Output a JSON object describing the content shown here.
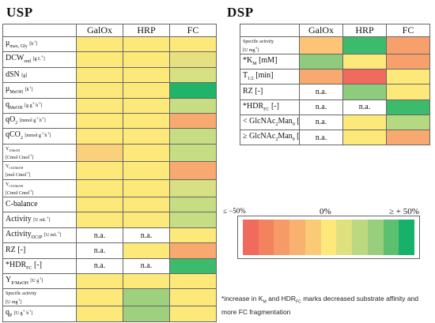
{
  "usp": {
    "title": "USP",
    "columns": [
      "GalOx",
      "HRP",
      "FC"
    ],
    "rows": [
      {
        "html": "μ<sub>max, Gly</sub> <span class=\"lg-s\">[h<sup>-1</sup>]</span>",
        "cells": [
          "#fde97a",
          "#fde97a",
          "#fde97a"
        ]
      },
      {
        "html": "DCW<sub>end</sub> <span class=\"lg-s\">[g L<sup>-1</sup>]</span>",
        "cells": [
          "#fde97a",
          "#fde97a",
          "#e6e07e"
        ]
      },
      {
        "html": "dSN <span class=\"lg-s\">[g]</span>",
        "cells": [
          "#fde97a",
          "#fde97a",
          "#d7e083"
        ]
      },
      {
        "html": "μ<sub>MeOH</sub> <span class=\"lg-s\">[h<sup>-1</sup>]</span>",
        "cells": [
          "#fde97a",
          "#fde97a",
          "#1fb46a"
        ]
      },
      {
        "html": "q<sub>MeOH</sub> <span class=\"lg-s\">[g g<sup>-1</sup> h<sup>-1</sup>]</span>",
        "cells": [
          "#fde97a",
          "#fde97a",
          "#c7dd84"
        ]
      },
      {
        "html": "qO<sub>2</sub> <span class=\"lg-s\">[mmol g<sup>-1</sup> h<sup>-1</sup>]</span>",
        "cells": [
          "#fde97a",
          "#fde97a",
          "#f8a96f"
        ]
      },
      {
        "html": "qCO<sub>2</sub> <span class=\"lg-s\">[mmol g<sup>-1</sup> h<sup>-1</sup>]</span>",
        "cells": [
          "#fde97a",
          "#fde97a",
          "#c7dd84"
        ]
      },
      {
        "html": "<span class=\"lg-s\">Y<sub>X/MeOH</sub><br>[Cmol Cmol<sup>-1</sup>]</span>",
        "cells": [
          "#fbd07a",
          "#fde97a",
          "#c7dd84"
        ]
      },
      {
        "html": "<span class=\"lg-s\">Y<sub>CO2/MeOH</sub><br>[mol Cmol<sup>-1</sup>]</span>",
        "cells": [
          "#fde97a",
          "#fde97a",
          "#f8a96f"
        ]
      },
      {
        "html": "<span class=\"lg-s\">Y<sub>CO2/MeOH</sub><br>[Cmol Cmol<sup>-1</sup>]</span>",
        "cells": [
          "#fde97a",
          "#fde97a",
          "#d7e083"
        ]
      },
      {
        "html": "C-balance",
        "cells": [
          "#fde97a",
          "#fde97a",
          "#c7dd84"
        ]
      },
      {
        "html": "Activity <span class=\"lg-s\">[U mL<sup>-1</sup>]</span>",
        "cells": [
          "#fde97a",
          "#fde97a",
          "#c7dd84"
        ]
      },
      {
        "html": "Activity<sub>DCIP</sub> <span class=\"lg-s\">[U mL<sup>-1</sup>]</span>",
        "cells": [
          "na",
          "na",
          "#fde97a"
        ]
      },
      {
        "html": "RZ [-]",
        "cells": [
          "na",
          "#fde97a",
          "#f8a96f"
        ]
      },
      {
        "html": "*HDR<sub>FC</sub> [-]",
        "cells": [
          "na",
          "na",
          "#3dbb6c"
        ]
      },
      {
        "html": "Y<sub>P/MeOH</sub> <span class=\"lg-s\">[U g<sup>-1</sup>]</span>",
        "cells": [
          "#fde97a",
          "#fde97a",
          "#fde97a"
        ]
      },
      {
        "html": "<span class=\"lg-s\">Specific activity<br>[U mg<sup>-1</sup>]</span>",
        "cells": [
          "#fde97a",
          "#9ed07d",
          "#fde97a"
        ]
      },
      {
        "html": "q<sub>P</sub> <span class=\"lg-s\">[U g<sup>-1</sup> h<sup>-1</sup>]</span>",
        "cells": [
          "#fde97a",
          "#9ed07d",
          "#fde97a"
        ]
      }
    ]
  },
  "dsp": {
    "title": "DSP",
    "columns": [
      "GalOx",
      "HRP",
      "FC"
    ],
    "rows": [
      {
        "html": "<span class=\"lg-s\">Specific activity<br>[U mg<sup>-1</sup>]</span>",
        "cells": [
          "#fbc477",
          "#3dbb6c",
          "#f8a06c"
        ]
      },
      {
        "html": "*K<sub>M</sub> [mM]",
        "cells": [
          "#8fcb7c",
          "#fde97a",
          "#f8a06c"
        ]
      },
      {
        "html": "T<sub>1/2</sub> [min]",
        "cells": [
          "#f8a96f",
          "#f06a5e",
          "#fde97a"
        ]
      },
      {
        "html": "RZ [-]",
        "cells": [
          "na",
          "#8fcb7c",
          "#fde97a"
        ]
      },
      {
        "html": "*HDR<sub>FC</sub> [-]",
        "cells": [
          "na",
          "na",
          "#3dbb6c"
        ]
      },
      {
        "html": "&lt; GlcNAc<sub>2</sub>Man<sub>9</sub> [%]",
        "cells": [
          "na",
          "#fde97a",
          "#b5d980"
        ]
      },
      {
        "html": "≥ GlcNAc<sub>2</sub>Man<sub>9</sub> [%]",
        "cells": [
          "na",
          "#fde97a",
          "#f8a96f"
        ]
      }
    ]
  },
  "na_text": "n.a.",
  "legend": {
    "label_min": "≤ −50%",
    "label_mid": "0%",
    "label_max": "≥ + 50%",
    "colors": [
      "#f06a5e",
      "#f3825f",
      "#f69a67",
      "#f8b16f",
      "#fbca77",
      "#fde97a",
      "#dfe17f",
      "#bcd982",
      "#99cf7c",
      "#5dbf70",
      "#16b26a"
    ]
  },
  "note": {
    "html": "*increase in K<sub>M</sub> and HDR<sub>FC</sub> marks decreased substrate affinity and more FC fragmentation"
  }
}
